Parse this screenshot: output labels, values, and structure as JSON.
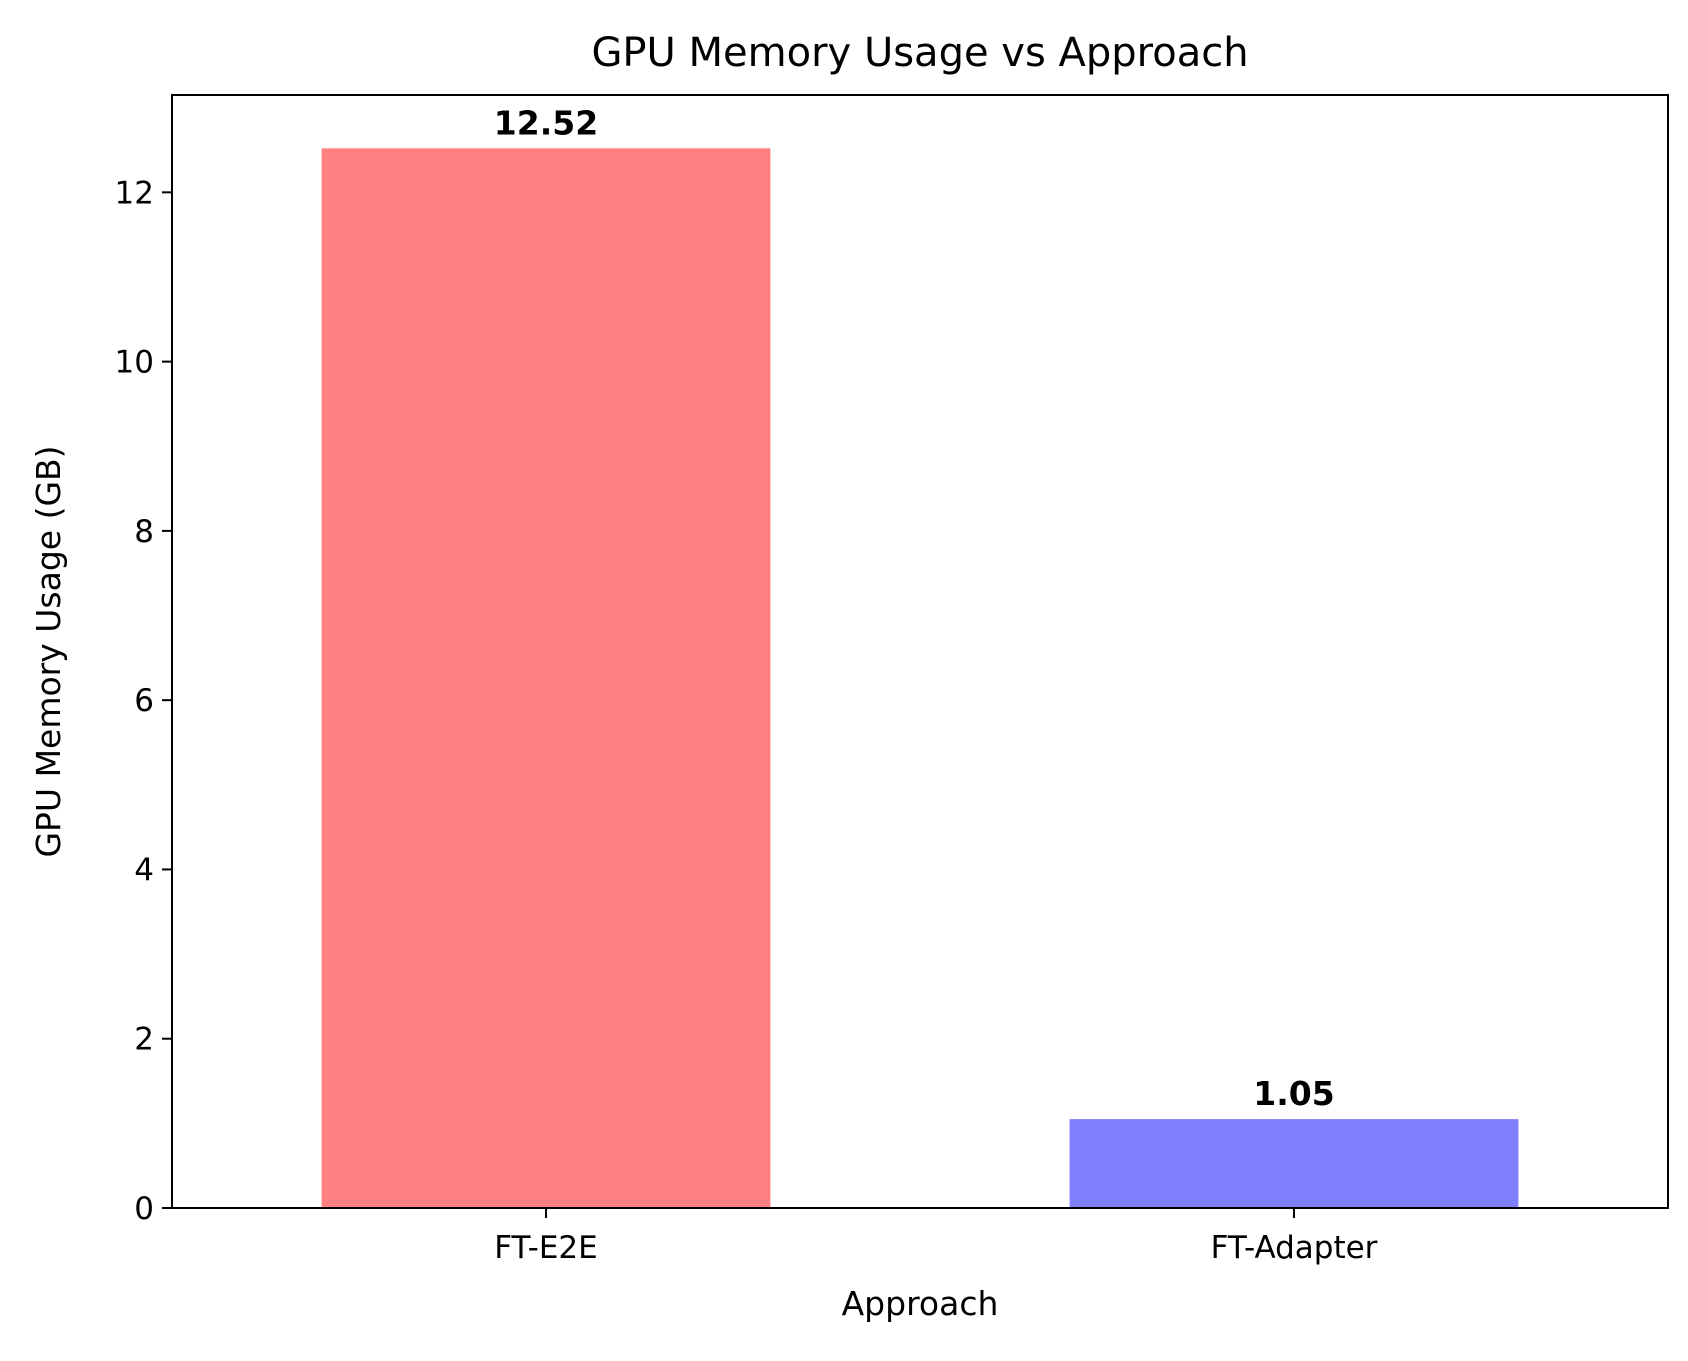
{
  "chart_data": {
    "type": "bar",
    "title": "GPU Memory Usage vs Approach",
    "xlabel": "Approach",
    "ylabel": "GPU Memory Usage (GB)",
    "categories": [
      "FT-E2E",
      "FT-Adapter"
    ],
    "values": [
      12.52,
      1.05
    ],
    "data_labels": [
      "12.52",
      "1.05"
    ],
    "colors": [
      "#ff8080",
      "#8080ff"
    ],
    "ylim": [
      0,
      13.15
    ],
    "yticks": [
      0,
      2,
      4,
      6,
      8,
      10,
      12
    ],
    "grid": false,
    "legend": "none"
  }
}
